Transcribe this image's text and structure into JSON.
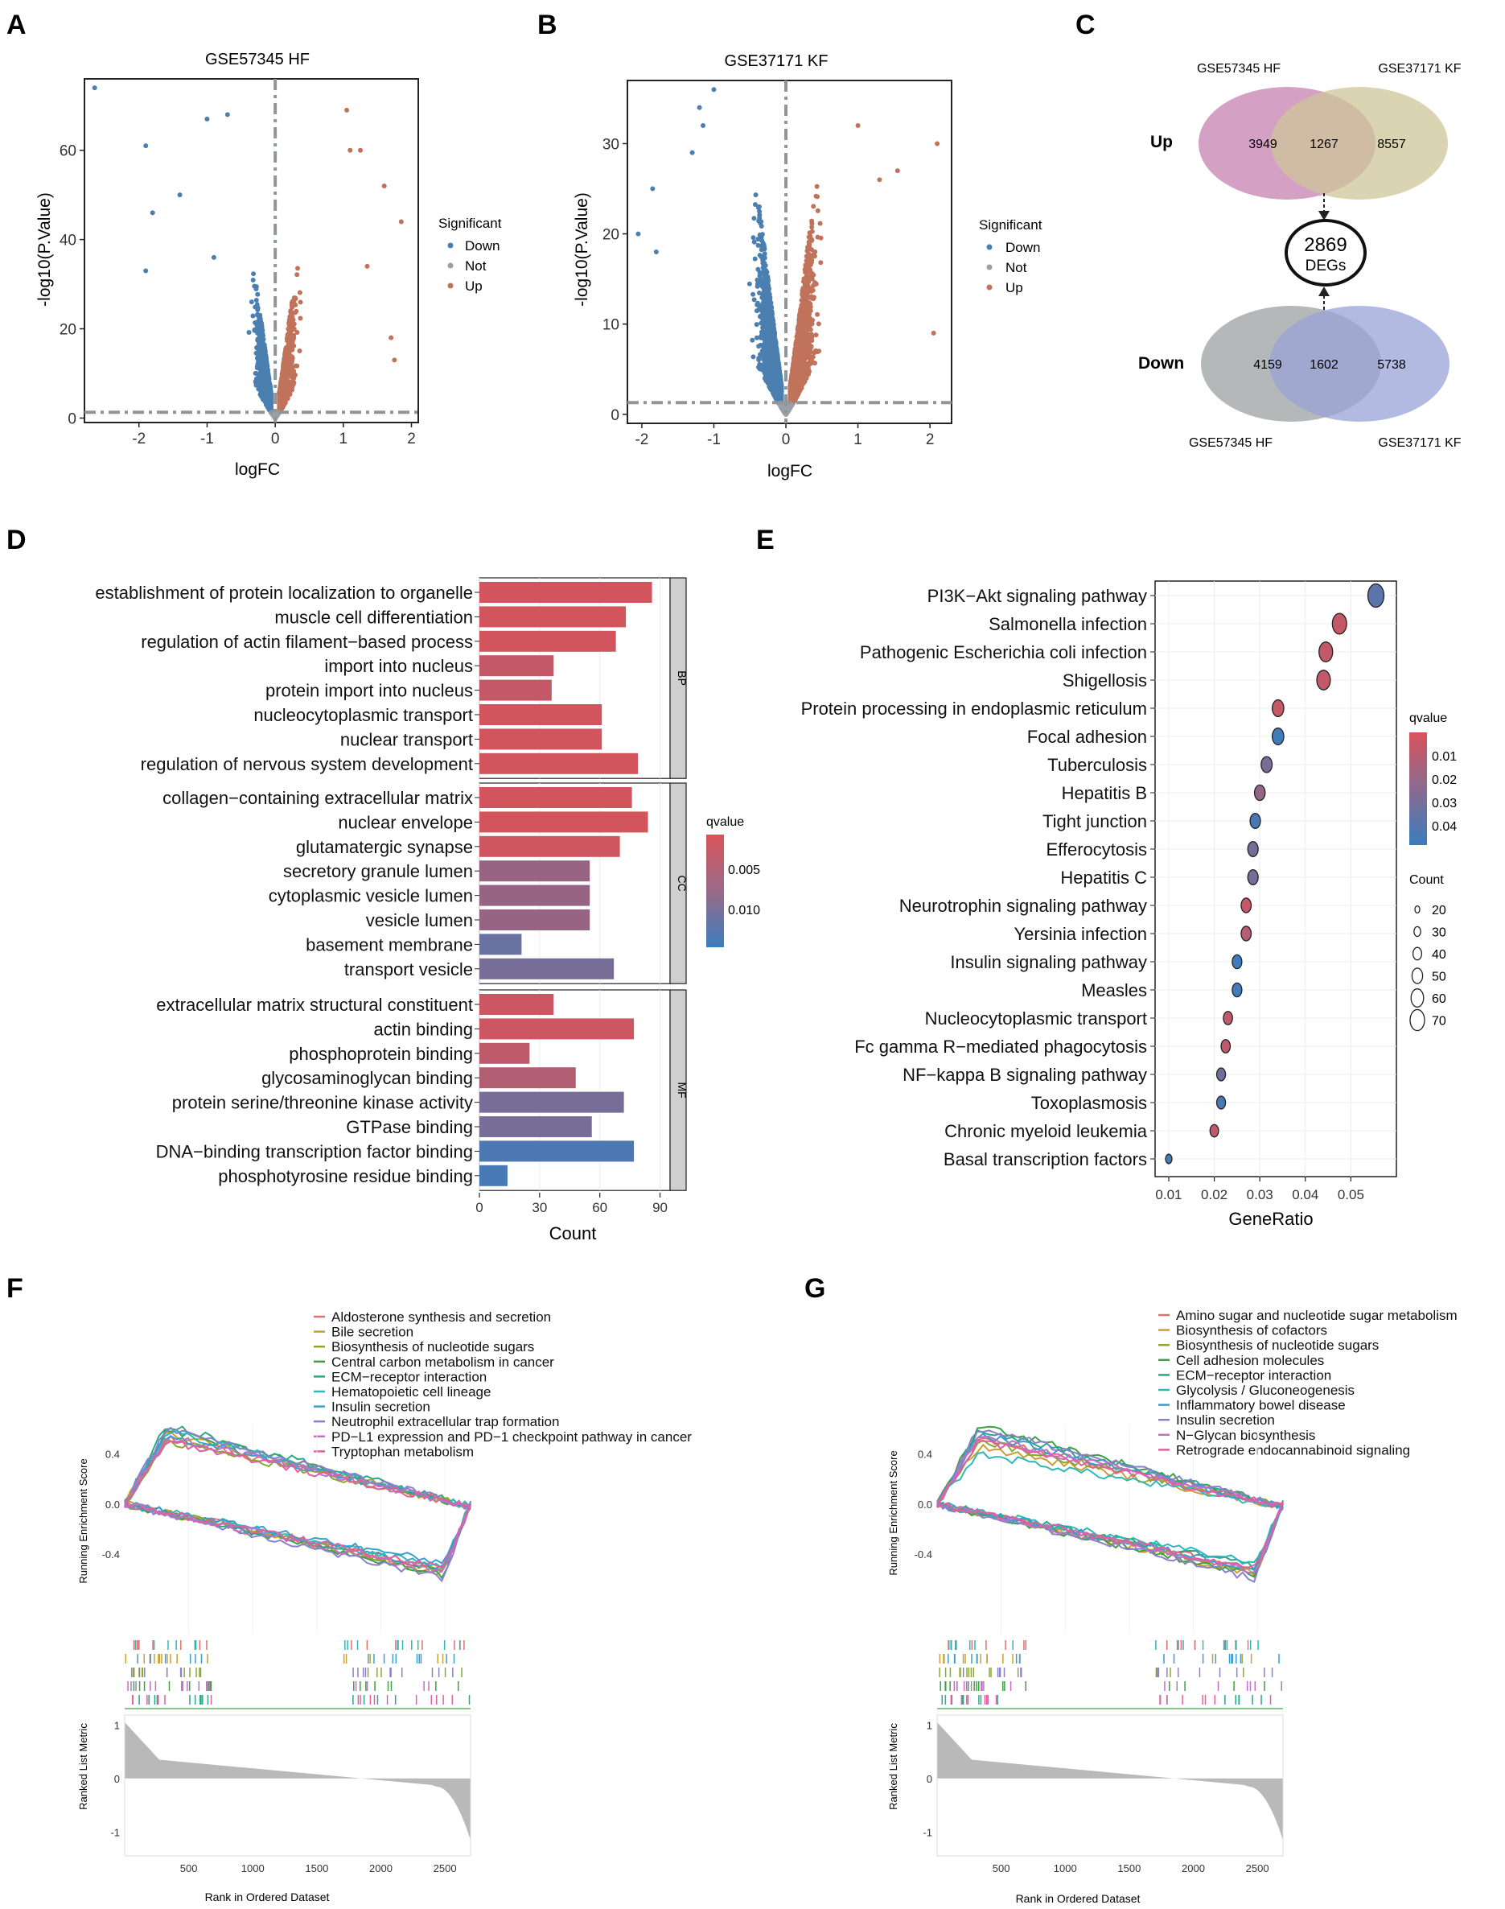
{
  "colors": {
    "down": "#4a7fb0",
    "not": "#9aa0a6",
    "up": "#c0725a",
    "venn_up_a": "#cc8fb8",
    "venn_up_b": "#cfc69a",
    "venn_down_a": "#a8abad",
    "venn_down_b": "#9aa3d8",
    "q_high": "#d9535a",
    "q_low": "#3a7dbd",
    "gsea_bar": "#b9b9b9"
  },
  "panels": {
    "A": {
      "label": "A",
      "chart_data": {
        "type": "scatter",
        "title": "GSE57345 HF",
        "xlabel": "logFC",
        "ylabel": "-log10(P.Value)",
        "xlim": [
          -2.8,
          2.1
        ],
        "ylim": [
          -1,
          76
        ],
        "xticks": [
          -2,
          -1,
          0,
          1,
          2
        ],
        "yticks": [
          0,
          20,
          40,
          60
        ],
        "vline": 0,
        "hline": 1.3,
        "legend_title": "Significant",
        "legend": [
          "Down",
          "Not",
          "Up"
        ],
        "outliers_down": [
          [
            -2.65,
            74
          ],
          [
            -1.9,
            61
          ],
          [
            -1.0,
            67
          ],
          [
            -0.7,
            68
          ],
          [
            -1.8,
            46
          ],
          [
            -1.9,
            33
          ],
          [
            -0.9,
            36
          ],
          [
            -1.4,
            50
          ]
        ],
        "outliers_up": [
          [
            1.05,
            69
          ],
          [
            1.1,
            60
          ],
          [
            1.25,
            60
          ],
          [
            1.85,
            44
          ],
          [
            1.6,
            52
          ],
          [
            1.7,
            18
          ],
          [
            1.75,
            13
          ],
          [
            1.35,
            34
          ]
        ]
      }
    },
    "B": {
      "label": "B",
      "chart_data": {
        "type": "scatter",
        "title": "GSE37171 KF",
        "xlabel": "logFC",
        "ylabel": "-log10(P.Value)",
        "xlim": [
          -2.2,
          2.3
        ],
        "ylim": [
          -1,
          37
        ],
        "xticks": [
          -2,
          -1,
          0,
          1,
          2
        ],
        "yticks": [
          0,
          10,
          20,
          30
        ],
        "vline": 0,
        "hline": 1.3,
        "legend_title": "Significant",
        "legend": [
          "Down",
          "Not",
          "Up"
        ],
        "outliers_down": [
          [
            -1.0,
            36
          ],
          [
            -1.2,
            34
          ],
          [
            -1.15,
            32
          ],
          [
            -1.85,
            25
          ],
          [
            -2.05,
            20
          ],
          [
            -1.8,
            18
          ],
          [
            -1.3,
            29
          ]
        ],
        "outliers_up": [
          [
            2.1,
            30
          ],
          [
            1.55,
            27
          ],
          [
            2.05,
            9
          ],
          [
            1.3,
            26
          ],
          [
            1.0,
            32
          ]
        ]
      }
    },
    "C": {
      "label": "C",
      "up_label": "Up",
      "down_label": "Down",
      "up_left_set": "GSE57345 HF",
      "up_right_set": "GSE37171 KF",
      "down_left_set": "GSE57345 HF",
      "down_right_set": "GSE37171 KF",
      "up_left_only": "3949",
      "up_overlap": "1267",
      "up_right_only": "8557",
      "down_left_only": "4159",
      "down_overlap": "1602",
      "down_right_only": "5738",
      "center_count": "2869",
      "center_label": "DEGs"
    },
    "D": {
      "label": "D",
      "chart_data": {
        "type": "bar",
        "orientation": "horizontal",
        "xlabel": "Count",
        "xlim": [
          0,
          95
        ],
        "xticks": [
          0,
          30,
          60,
          90
        ],
        "legend_title": "qvalue",
        "legend_ticks": [
          "0.005",
          "0.010"
        ],
        "qlim": [
          0.001,
          0.013
        ],
        "groups": [
          {
            "name": "BP",
            "categories": [
              "establishment of protein localization to organelle",
              "muscle cell differentiation",
              "regulation of actin filament−based process",
              "import into nucleus",
              "protein import into nucleus",
              "nucleocytoplasmic transport",
              "nuclear transport",
              "regulation of nervous system development"
            ],
            "values": [
              86,
              73,
              68,
              37,
              36,
              61,
              61,
              79
            ],
            "qvalues": [
              0.0015,
              0.0015,
              0.0015,
              0.0025,
              0.0025,
              0.0015,
              0.0015,
              0.0015
            ]
          },
          {
            "name": "CC",
            "categories": [
              "collagen−containing extracellular matrix",
              "nuclear envelope",
              "glutamatergic synapse",
              "secretory granule lumen",
              "cytoplasmic vesicle lumen",
              "vesicle lumen",
              "basement membrane",
              "transport vesicle"
            ],
            "values": [
              76,
              84,
              70,
              55,
              55,
              55,
              21,
              67
            ],
            "qvalues": [
              0.0015,
              0.0015,
              0.0018,
              0.006,
              0.006,
              0.006,
              0.0095,
              0.0085
            ]
          },
          {
            "name": "MF",
            "categories": [
              "extracellular matrix structural constituent",
              "actin binding",
              "phosphoprotein binding",
              "glycosaminoglycan binding",
              "protein serine/threonine kinase activity",
              "GTPase binding",
              "DNA−binding transcription factor binding",
              "phosphotyrosine residue binding"
            ],
            "values": [
              37,
              77,
              25,
              48,
              72,
              56,
              77,
              14
            ],
            "qvalues": [
              0.002,
              0.002,
              0.003,
              0.004,
              0.0085,
              0.0085,
              0.0115,
              0.012
            ]
          }
        ]
      }
    },
    "E": {
      "label": "E",
      "chart_data": {
        "type": "scatter",
        "subtype": "dot",
        "xlabel": "GeneRatio",
        "xlim": [
          0.007,
          0.06
        ],
        "xticks": [
          0.01,
          0.02,
          0.03,
          0.04,
          0.05
        ],
        "xtick_labels": [
          "0.01",
          "0.02",
          "0.03",
          "0.04",
          "0.05"
        ],
        "color_title": "qvalue",
        "color_ticks": [
          "0.01",
          "0.02",
          "0.03",
          "0.04"
        ],
        "qlim": [
          0.003,
          0.047
        ],
        "size_title": "Count",
        "size_ticks": [
          "20",
          "30",
          "40",
          "50",
          "60",
          "70"
        ],
        "categories": [
          "PI3K−Akt signaling pathway",
          "Salmonella infection",
          "Pathogenic Escherichia coli infection",
          "Shigellosis",
          "Protein processing in endoplasmic reticulum",
          "Focal adhesion",
          "Tuberculosis",
          "Hepatitis B",
          "Tight junction",
          "Efferocytosis",
          "Hepatitis C",
          "Neurotrophin signaling pathway",
          "Yersinia infection",
          "Insulin signaling pathway",
          "Measles",
          "Nucleocytoplasmic transport",
          "Fc gamma R−mediated phagocytosis",
          "NF−kappa B signaling pathway",
          "Toxoplasmosis",
          "Chronic myeloid leukemia",
          "Basal transcription factors"
        ],
        "gene_ratio": [
          0.0555,
          0.0475,
          0.0445,
          0.044,
          0.034,
          0.034,
          0.0315,
          0.03,
          0.029,
          0.0285,
          0.0285,
          0.027,
          0.027,
          0.025,
          0.025,
          0.023,
          0.0225,
          0.0215,
          0.0215,
          0.02,
          0.01
        ],
        "counts": [
          78,
          66,
          62,
          61,
          48,
          48,
          44,
          42,
          40,
          40,
          40,
          38,
          38,
          35,
          35,
          32,
          32,
          30,
          30,
          28,
          14
        ],
        "qvalues": [
          0.038,
          0.009,
          0.009,
          0.009,
          0.008,
          0.045,
          0.03,
          0.022,
          0.043,
          0.03,
          0.03,
          0.008,
          0.013,
          0.046,
          0.046,
          0.01,
          0.01,
          0.032,
          0.042,
          0.01,
          0.045
        ]
      }
    },
    "F": {
      "label": "F",
      "chart_data": {
        "type": "line",
        "ylabel_top": "Running Enrichment Score",
        "ylabel_bottom": "Ranked List Metric",
        "xlabel": "Rank in Ordered Dataset",
        "xlim": [
          0,
          2700
        ],
        "xticks": [
          500,
          1000,
          1500,
          2000,
          2500
        ],
        "es_ticks": [
          "0.4",
          "0.0",
          "-0.4"
        ],
        "metric_ticks": [
          "1",
          "0",
          "-1"
        ],
        "series": [
          {
            "name": "Aldosterone synthesis and secretion",
            "color": "#e07070",
            "peak": 0.52,
            "trough": -0.58
          },
          {
            "name": "Bile secretion",
            "color": "#c8a030",
            "peak": 0.55,
            "trough": -0.62
          },
          {
            "name": "Biosynthesis of nucleotide sugars",
            "color": "#8aa830",
            "peak": 0.5,
            "trough": -0.6
          },
          {
            "name": "Central carbon metabolism in cancer",
            "color": "#3fa044",
            "peak": 0.58,
            "trough": -0.63
          },
          {
            "name": "ECM−receptor interaction",
            "color": "#2aa888",
            "peak": 0.62,
            "trough": -0.58
          },
          {
            "name": "Hematopoietic cell lineage",
            "color": "#30b8b8",
            "peak": 0.57,
            "trough": -0.55
          },
          {
            "name": "Insulin secretion",
            "color": "#3a9ed0",
            "peak": 0.54,
            "trough": -0.52
          },
          {
            "name": "Neutrophil extracellular trap formation",
            "color": "#8a80d0",
            "peak": 0.6,
            "trough": -0.66
          },
          {
            "name": "PD−L1 expression and PD−1 checkpoint pathway in cancer",
            "color": "#c070c8",
            "peak": 0.53,
            "trough": -0.6
          },
          {
            "name": "Tryptophan metabolism",
            "color": "#e060a0",
            "peak": 0.5,
            "trough": -0.57
          }
        ]
      }
    },
    "G": {
      "label": "G",
      "chart_data": {
        "type": "line",
        "ylabel_top": "Running Enrichment Score",
        "ylabel_bottom": "Ranked List Metric",
        "xlabel": "Rank in Ordered Dataset",
        "xlim": [
          0,
          2700
        ],
        "xticks": [
          500,
          1000,
          1500,
          2000,
          2500
        ],
        "es_ticks": [
          "0.4",
          "0.0",
          "-0.4"
        ],
        "metric_ticks": [
          "1",
          "0",
          "-1"
        ],
        "series": [
          {
            "name": "Amino sugar and nucleotide sugar metabolism",
            "color": "#e07070",
            "peak": 0.52,
            "trough": -0.58
          },
          {
            "name": "Biosynthesis of cofactors",
            "color": "#c8a030",
            "peak": 0.45,
            "trough": -0.62
          },
          {
            "name": "Biosynthesis of nucleotide sugars",
            "color": "#8aa830",
            "peak": 0.5,
            "trough": -0.6
          },
          {
            "name": "Cell adhesion molecules",
            "color": "#3fa044",
            "peak": 0.62,
            "trough": -0.63
          },
          {
            "name": "ECM−receptor interaction",
            "color": "#2aa888",
            "peak": 0.58,
            "trough": -0.55
          },
          {
            "name": "Glycolysis / Gluconeogenesis",
            "color": "#30b8b8",
            "peak": 0.4,
            "trough": -0.52
          },
          {
            "name": "Inflammatory bowel disease",
            "color": "#3a9ed0",
            "peak": 0.55,
            "trough": -0.57
          },
          {
            "name": "Insulin secretion",
            "color": "#8a80d0",
            "peak": 0.6,
            "trough": -0.66
          },
          {
            "name": "N−Glycan biosynthesis",
            "color": "#c070c8",
            "peak": 0.53,
            "trough": -0.6
          },
          {
            "name": "Retrograde endocannabinoid signaling",
            "color": "#e060a0",
            "peak": 0.5,
            "trough": -0.57
          }
        ]
      }
    }
  }
}
